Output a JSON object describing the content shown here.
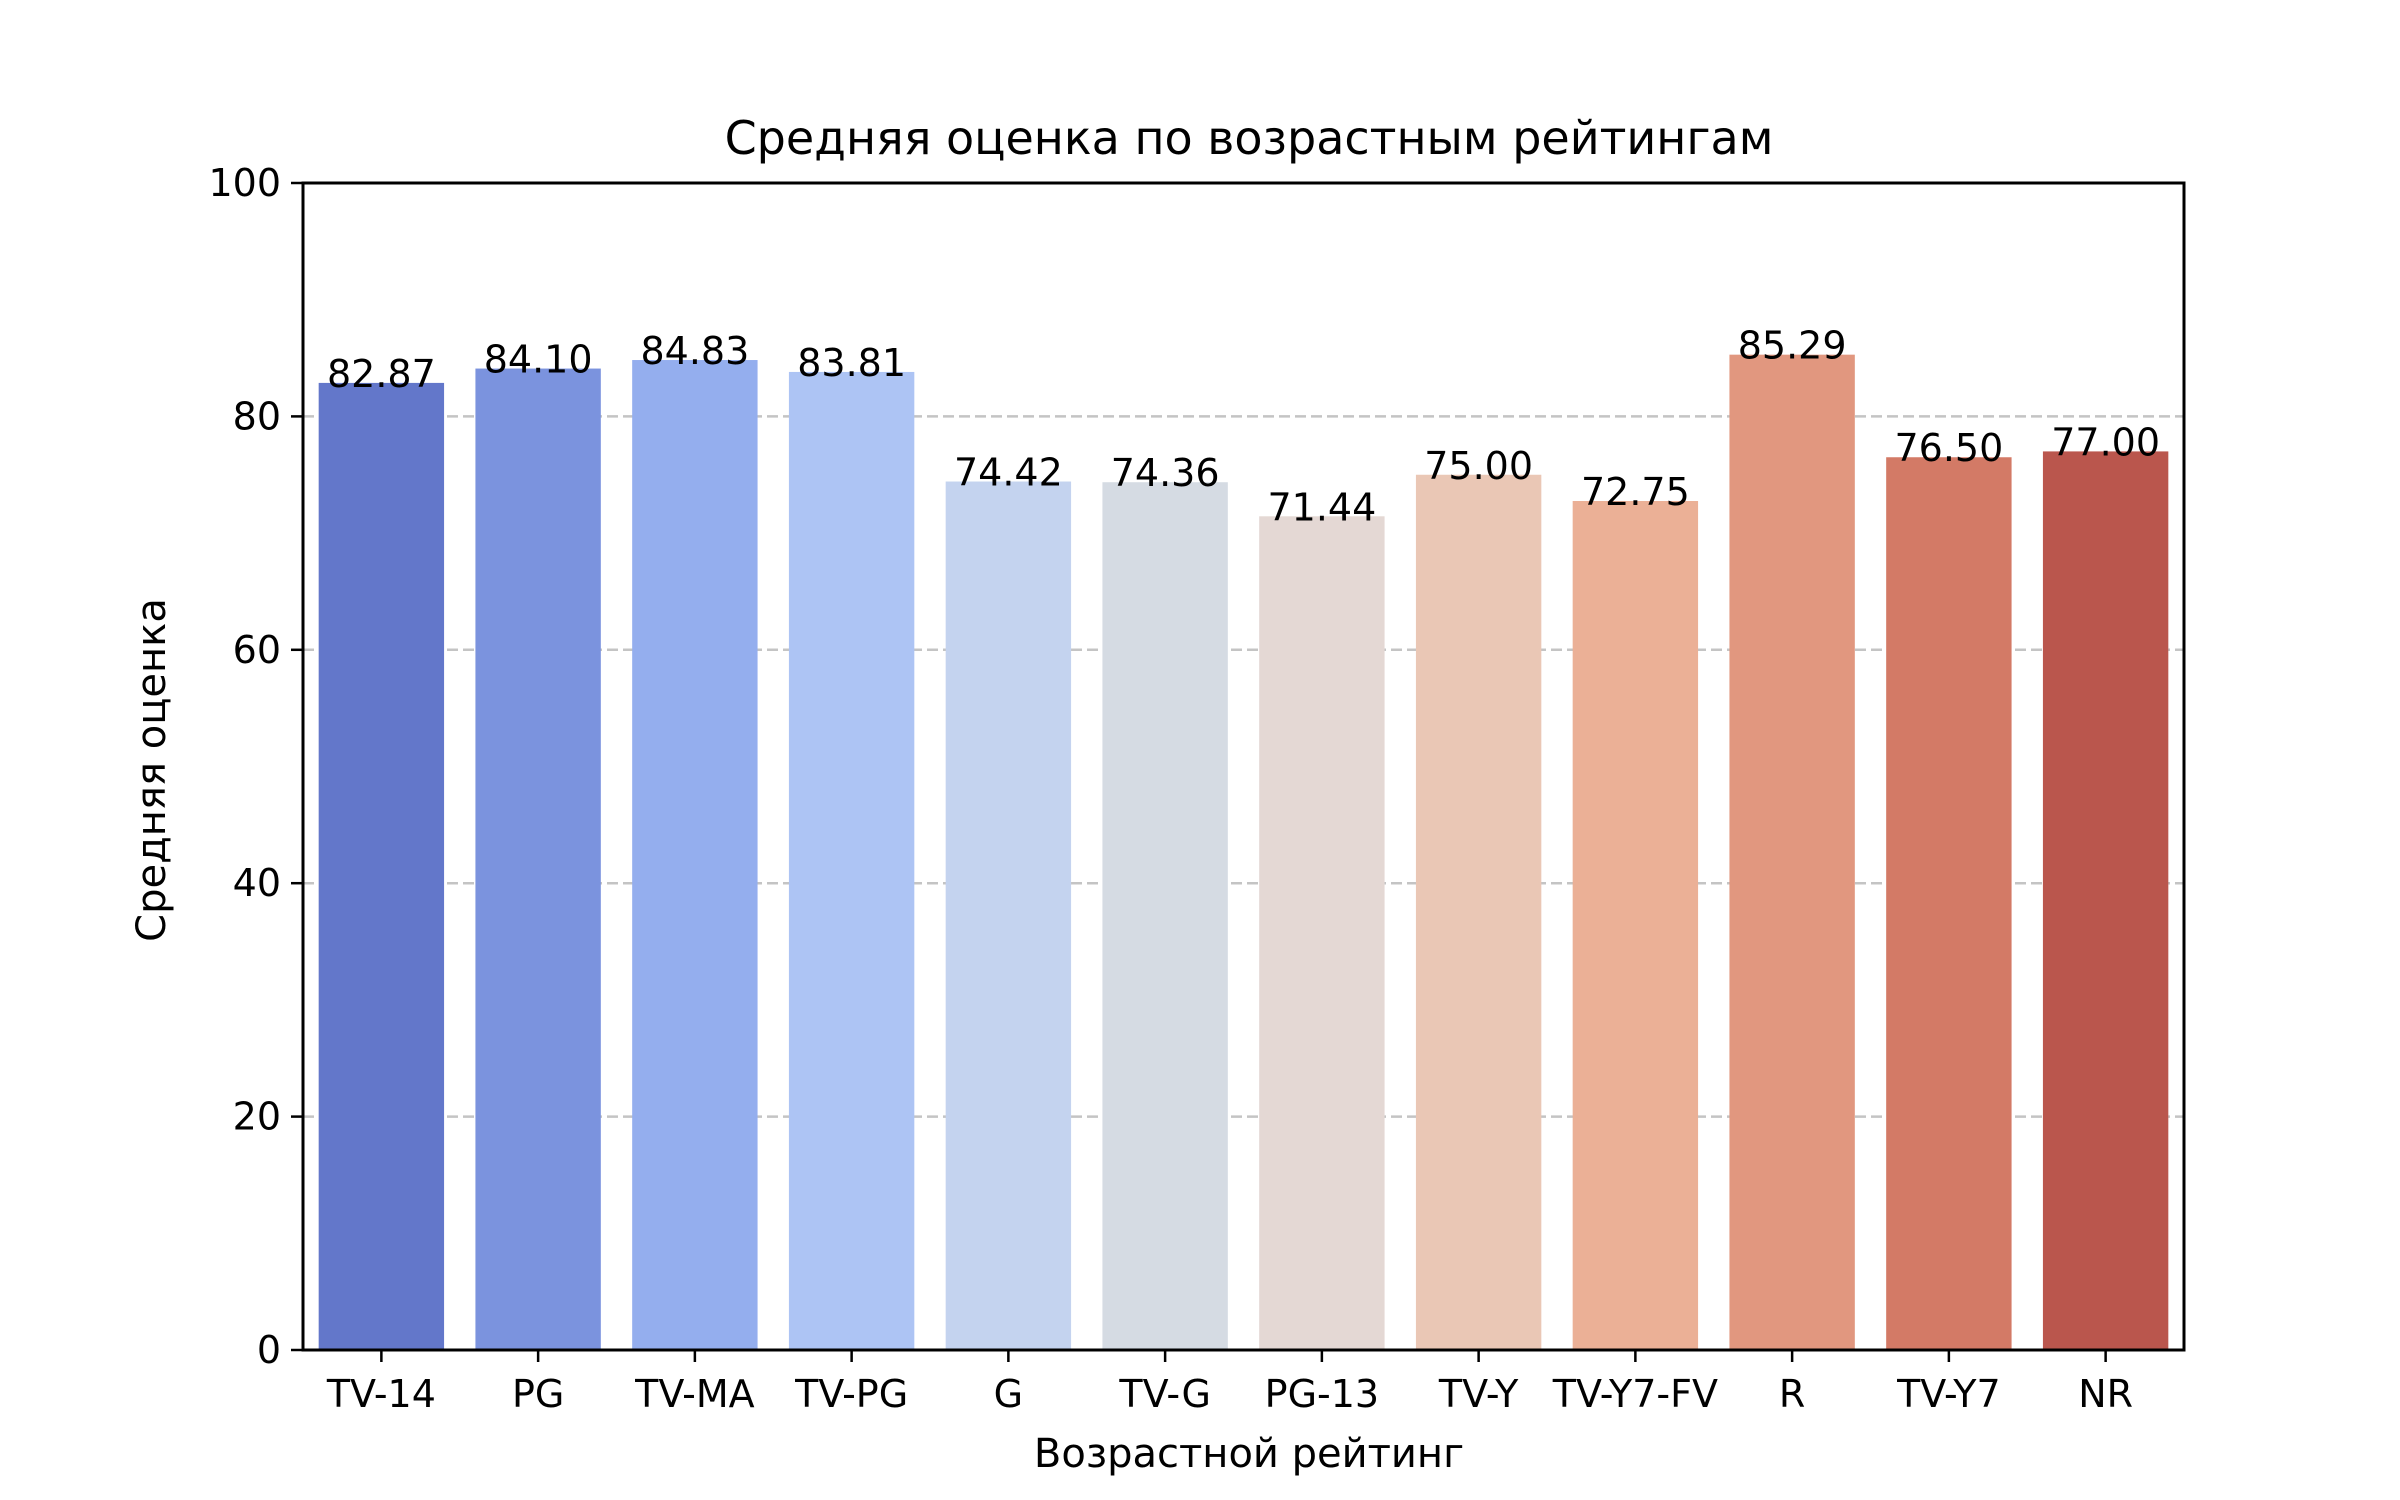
{
  "chart_data": {
    "type": "bar",
    "title": "Средняя оценка по возрастным рейтингам",
    "xlabel": "Возрастной рейтинг",
    "ylabel": "Средняя оценка",
    "ylim": [
      0,
      100
    ],
    "yticks": [
      0,
      20,
      40,
      60,
      80,
      100
    ],
    "grid": "y-dashed",
    "categories": [
      "TV-14",
      "PG",
      "TV-MA",
      "TV-PG",
      "G",
      "TV-G",
      "PG-13",
      "TV-Y",
      "TV-Y7-FV",
      "R",
      "TV-Y7",
      "NR"
    ],
    "values": [
      82.87,
      84.1,
      84.83,
      83.81,
      74.42,
      74.36,
      71.44,
      75.0,
      72.75,
      85.29,
      76.5,
      77.0
    ],
    "value_labels": [
      "82.87",
      "84.10",
      "84.83",
      "83.81",
      "74.42",
      "74.36",
      "71.44",
      "75.00",
      "72.75",
      "85.29",
      "76.50",
      "77.00"
    ],
    "colors": [
      "#6377CA",
      "#7B93DE",
      "#94AEEE",
      "#ADC4F4",
      "#C4D3EF",
      "#D5DBE3",
      "#E4D8D4",
      "#EAC7B5",
      "#EBB096",
      "#E1977F",
      "#D37A66",
      "#BA564D"
    ]
  }
}
